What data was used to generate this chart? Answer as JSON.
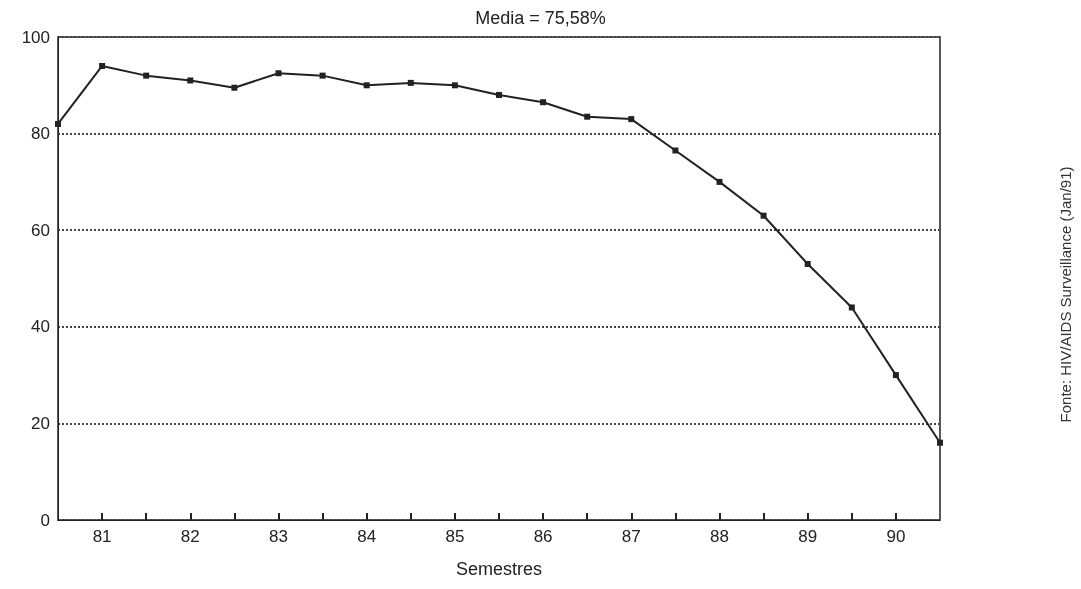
{
  "chart_data": {
    "type": "line",
    "title": "Media = 75,58%",
    "xlabel": "Semestres",
    "annotations": [
      "Fonte: HIV/AIDS Surveillance (Jan/91)"
    ],
    "x": [
      80.5,
      81,
      81.5,
      82,
      82.5,
      83,
      83.5,
      84,
      84.5,
      85,
      85.5,
      86,
      86.5,
      87,
      87.5,
      88,
      88.5,
      89,
      89.5,
      90,
      90.5
    ],
    "series": [
      {
        "color": "#222222",
        "values": [
          82,
          94,
          92,
          91,
          89.5,
          92.5,
          92,
          90,
          90.5,
          90,
          88,
          86.5,
          83.5,
          83,
          76.5,
          70,
          63,
          53,
          44,
          30,
          16
        ]
      }
    ],
    "xlim": [
      80.5,
      90.5
    ],
    "xticks": [
      81,
      {
        "value": 81.5,
        "label": null
      },
      82,
      {
        "value": 82.5,
        "label": null
      },
      83,
      {
        "value": 83.5,
        "label": null
      },
      84,
      {
        "value": 84.5,
        "label": null
      },
      85,
      {
        "value": 85.5,
        "label": null
      },
      86,
      {
        "value": 86.5,
        "label": null
      },
      87,
      {
        "value": 87.5,
        "label": null
      },
      88,
      {
        "value": 88.5,
        "label": null
      },
      89,
      {
        "value": 89.5,
        "label": null
      },
      90
    ],
    "ylim": [
      0,
      100
    ],
    "yticks": [
      0,
      20,
      40,
      60,
      80,
      100
    ],
    "grid": "y",
    "marker": "square",
    "line_style": "solid"
  }
}
